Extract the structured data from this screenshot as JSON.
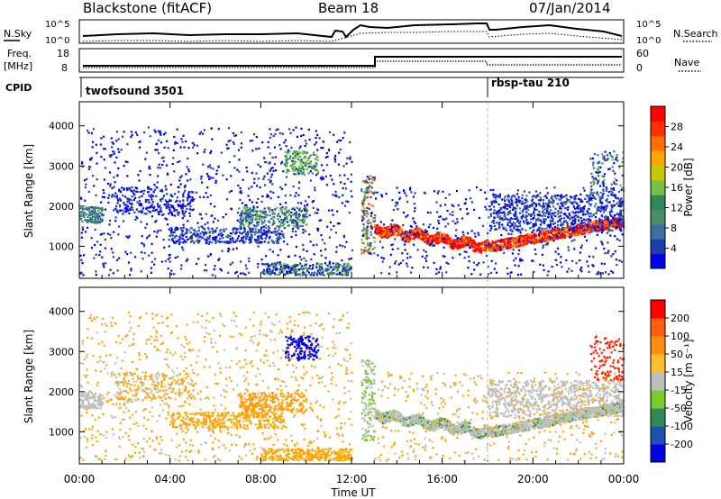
{
  "header": {
    "station": "Blackstone (fitACF)",
    "beam": "Beam 18",
    "date": "07/Jan/2014"
  },
  "param_panels": {
    "nsky_label": "N.Sky",
    "nsearch_label": "N.Search",
    "freq_label_top": "Freq.",
    "freq_label_bottom": "[MHz]",
    "nave_label": "Nave",
    "cpid_label": "CPID",
    "noise_ticks_left": [
      "10^5",
      "10^0"
    ],
    "noise_ticks_right": [
      "10^5",
      "10^0"
    ],
    "freq_ticks": [
      "18",
      "8"
    ],
    "nave_ticks": [
      "60",
      "0"
    ]
  },
  "cpid_segments": [
    {
      "name": "twofsound 3501",
      "start_hour": 0
    },
    {
      "name": "rbsp-tau 210",
      "start_hour": 18
    }
  ],
  "chart_data": [
    {
      "type": "heatmap",
      "title": "Power",
      "ylabel": "Slant Range [km]",
      "xlabel": "Time UT",
      "xlim_hours": [
        0,
        24
      ],
      "ylim_km": [
        200,
        4600
      ],
      "y_ticks": [
        1000,
        2000,
        3000,
        4000
      ],
      "x_tick_labels": [
        "00:00",
        "04:00",
        "08:00",
        "12:00",
        "16:00",
        "20:00",
        "00:00"
      ],
      "colorbar": {
        "label": "Power [dB]",
        "ticks": [
          "4",
          "8",
          "12",
          "16",
          "20",
          "24",
          "28"
        ],
        "colors": [
          "#0000f0",
          "#1f3fa8",
          "#3f6fa0",
          "#4a8f6a",
          "#2e8b57",
          "#77c043",
          "#c8c800",
          "#ffa500",
          "#ff7000",
          "#ff3000",
          "#ff0000"
        ]
      }
    },
    {
      "type": "heatmap",
      "title": "Velocity",
      "ylabel": "Slant Range [km]",
      "xlabel": "Time UT",
      "xlim_hours": [
        0,
        24
      ],
      "ylim_km": [
        200,
        4600
      ],
      "y_ticks": [
        1000,
        2000,
        3000,
        4000
      ],
      "x_tick_labels": [
        "00:00",
        "04:00",
        "08:00",
        "12:00",
        "16:00",
        "20:00",
        "00:00"
      ],
      "colorbar": {
        "label": "Velocity [m s⁻¹]",
        "ticks": [
          "200",
          "100",
          "50",
          "15",
          "-15",
          "-50",
          "-100",
          "-200"
        ],
        "colors": [
          "#0000e0",
          "#2050b0",
          "#2e8b57",
          "#7acc2e",
          "#bebebe",
          "#ffc030",
          "#ff9010",
          "#ff6010",
          "#ff0000"
        ]
      }
    }
  ]
}
